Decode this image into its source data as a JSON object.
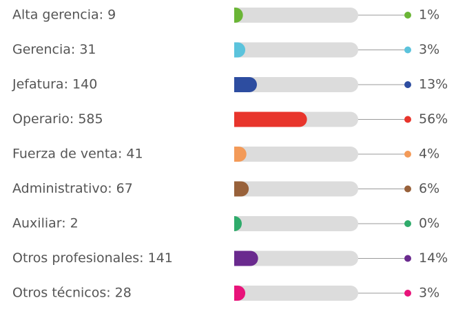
{
  "chart_data": {
    "type": "progress",
    "categories": [
      "Alta gerencia: 9",
      "Gerencia: 31",
      "Jefatura: 140",
      "Operario: 585",
      "Fuerza de venta: 41",
      "Administrativo: 67",
      "Auxiliar: 2",
      "Otros profesionales: 141",
      "Otros técnicos: 28"
    ],
    "values": [
      1,
      3,
      13,
      56,
      4,
      6,
      0,
      14,
      3
    ],
    "value_labels": [
      "1%",
      "3%",
      "13%",
      "56%",
      "4%",
      "6%",
      "0%",
      "14%",
      "3%"
    ],
    "colors": [
      "#6ab536",
      "#5bc3dc",
      "#2d4da0",
      "#e8352c",
      "#f39a58",
      "#98613a",
      "#2fab6b",
      "#6a2a8e",
      "#e8137a"
    ],
    "xlim": [
      0,
      100
    ]
  }
}
